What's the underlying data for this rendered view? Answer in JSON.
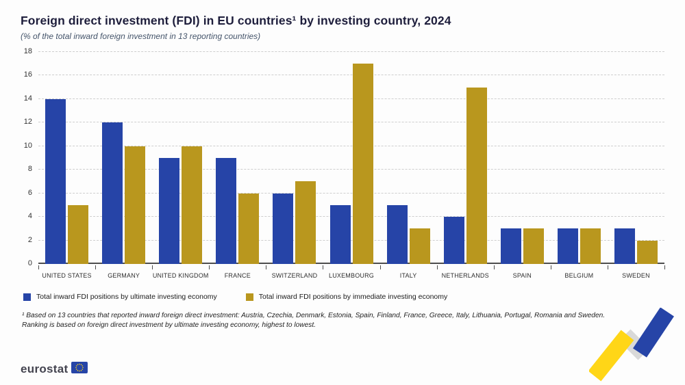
{
  "title": "Foreign direct investment (FDI) in EU countries¹ by investing country, 2024",
  "subtitle": "(% of the total inward foreign investment in 13 reporting countries)",
  "chart_data": {
    "type": "bar",
    "categories": [
      "UNITED STATES",
      "GERMANY",
      "UNITED KINGDOM",
      "FRANCE",
      "SWITZERLAND",
      "LUXEMBOURG",
      "ITALY",
      "NETHERLANDS",
      "SPAIN",
      "BELGIUM",
      "SWEDEN"
    ],
    "series": [
      {
        "name": "Total inward FDI positions by ultimate investing economy",
        "color": "#2644A7",
        "values": [
          14,
          12,
          9,
          9,
          6,
          5,
          5,
          4,
          3,
          3,
          3
        ]
      },
      {
        "name": "Total inward FDI positions by immediate investing economy",
        "color": "#B9971E",
        "values": [
          5,
          10,
          10,
          6,
          7,
          17,
          3,
          15,
          3,
          3,
          2
        ]
      }
    ],
    "title": "Foreign direct investment (FDI) in EU countries by investing country, 2024",
    "xlabel": "",
    "ylabel": "",
    "ylim": [
      0,
      18
    ],
    "ytick_step": 2,
    "grid": "dashed-horizontal",
    "legend_position": "bottom"
  },
  "footnote_line1": "¹ Based on 13 countries that reported inward foreign direct investment: Austria, Czechia, Denmark, Estonia, Spain, Finland, France, Greece, Italy, Lithuania, Portugal, Romania and Sweden.",
  "footnote_line2": "Ranking is based on foreign direct investment by ultimate investing economy, highest to lowest.",
  "logo_text": "eurostat",
  "colors": {
    "series1_blue": "#2644A7",
    "series2_gold": "#B9971E",
    "ribbon_yellow": "#FFD617",
    "ribbon_blue": "#2644A7",
    "flag_blue": "#2644A7",
    "flag_stars": "#FFD617"
  }
}
